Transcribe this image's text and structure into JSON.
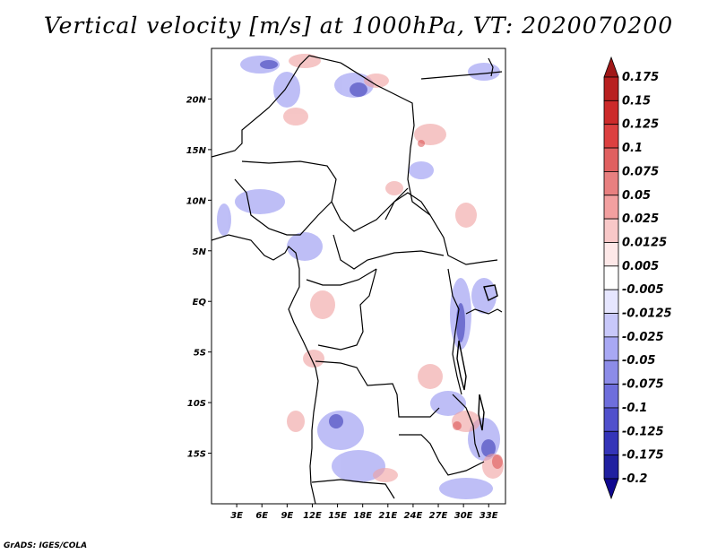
{
  "title": "Vertical velocity [m/s] at 1000hPa, VT: 2020070200",
  "footer": "GrADS: IGES/COLA",
  "map": {
    "lon_range": [
      0,
      35
    ],
    "lat_range": [
      -20,
      25
    ],
    "lat_ticks": [
      {
        "value": 20,
        "label": "20N"
      },
      {
        "value": 15,
        "label": "15N"
      },
      {
        "value": 10,
        "label": "10N"
      },
      {
        "value": 5,
        "label": "5N"
      },
      {
        "value": 0,
        "label": "EQ"
      },
      {
        "value": -5,
        "label": "5S"
      },
      {
        "value": -10,
        "label": "10S"
      },
      {
        "value": -15,
        "label": "15S"
      }
    ],
    "lon_ticks": [
      {
        "value": 3,
        "label": "3E"
      },
      {
        "value": 6,
        "label": "6E"
      },
      {
        "value": 9,
        "label": "9E"
      },
      {
        "value": 12,
        "label": "12E"
      },
      {
        "value": 15,
        "label": "15E"
      },
      {
        "value": 18,
        "label": "18E"
      },
      {
        "value": 21,
        "label": "21E"
      },
      {
        "value": 24,
        "label": "24E"
      },
      {
        "value": 27,
        "label": "27E"
      },
      {
        "value": 30,
        "label": "30E"
      },
      {
        "value": 33,
        "label": "33E"
      }
    ]
  },
  "colorbar": {
    "labels": [
      "0.175",
      "0.15",
      "0.125",
      "0.1",
      "0.075",
      "0.05",
      "0.025",
      "0.0125",
      "0.005",
      "-0.005",
      "-0.0125",
      "-0.025",
      "-0.05",
      "-0.075",
      "-0.1",
      "-0.125",
      "-0.175",
      "-0.2"
    ],
    "colors": [
      "#a01818",
      "#b82020",
      "#cc2a2a",
      "#dc4040",
      "#e06060",
      "#e88080",
      "#f2a0a0",
      "#f8c8c8",
      "#fde8e8",
      "#ffffff",
      "#e6e6ff",
      "#c8c8fa",
      "#a8a8f4",
      "#8c8ce8",
      "#6e6edc",
      "#5050cc",
      "#3434b8",
      "#2020a0",
      "#100890"
    ]
  }
}
